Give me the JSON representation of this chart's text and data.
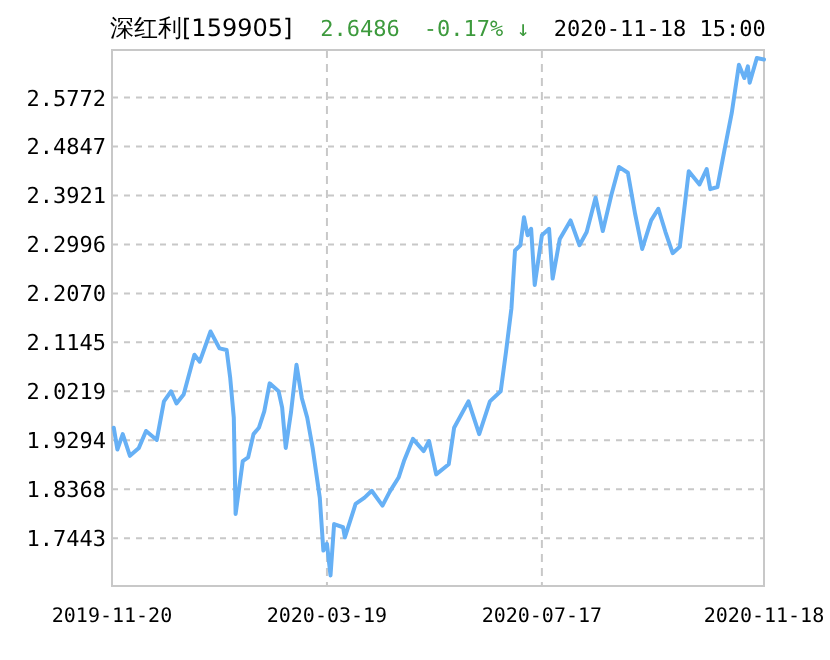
{
  "chart_data": {
    "type": "line",
    "title": "深红利[159905]",
    "annotations": [
      "2.6486",
      "-0.17% ↓",
      "2020-11-18 15:00"
    ],
    "x": [
      "2019-11-21",
      "2019-11-23",
      "2019-11-26",
      "2019-11-30",
      "2019-12-05",
      "2019-12-09",
      "2019-12-15",
      "2019-12-19",
      "2019-12-23",
      "2019-12-26",
      "2019-12-30",
      "2020-01-05",
      "2020-01-08",
      "2020-01-14",
      "2020-01-19",
      "2020-01-23",
      "2020-01-25",
      "2020-01-27",
      "2020-01-28",
      "2020-02-01",
      "2020-02-04",
      "2020-02-07",
      "2020-02-10",
      "2020-02-13",
      "2020-02-16",
      "2020-02-21",
      "2020-02-23",
      "2020-02-25",
      "2020-02-28",
      "2020-03-02",
      "2020-03-05",
      "2020-03-08",
      "2020-03-11",
      "2020-03-15",
      "2020-03-17",
      "2020-03-19",
      "2020-03-21",
      "2020-03-23",
      "2020-03-28",
      "2020-03-29",
      "2020-04-04",
      "2020-04-09",
      "2020-04-13",
      "2020-04-19",
      "2020-04-23",
      "2020-04-28",
      "2020-05-01",
      "2020-05-06",
      "2020-05-12",
      "2020-05-15",
      "2020-05-19",
      "2020-05-26",
      "2020-05-29",
      "2020-06-06",
      "2020-06-12",
      "2020-06-18",
      "2020-06-24",
      "2020-06-27",
      "2020-06-30",
      "2020-07-02",
      "2020-07-05",
      "2020-07-07",
      "2020-07-09",
      "2020-07-11",
      "2020-07-13",
      "2020-07-17",
      "2020-07-21",
      "2020-07-23",
      "2020-07-27",
      "2020-08-02",
      "2020-08-07",
      "2020-08-11",
      "2020-08-16",
      "2020-08-20",
      "2020-08-25",
      "2020-08-29",
      "2020-09-03",
      "2020-09-07",
      "2020-09-11",
      "2020-09-16",
      "2020-09-20",
      "2020-09-24",
      "2020-09-28",
      "2020-10-02",
      "2020-10-07",
      "2020-10-13",
      "2020-10-17",
      "2020-10-19",
      "2020-10-23",
      "2020-10-27",
      "2020-10-31",
      "2020-11-04",
      "2020-11-07",
      "2020-11-09",
      "2020-11-10",
      "2020-11-14",
      "2020-11-18"
    ],
    "series": [
      {
        "color": "#66b0f5",
        "values": [
          1.953,
          1.912,
          1.941,
          1.9,
          1.915,
          1.947,
          1.93,
          2.003,
          2.022,
          1.999,
          2.016,
          2.091,
          2.078,
          2.135,
          2.103,
          2.1,
          2.047,
          1.972,
          1.79,
          1.89,
          1.897,
          1.941,
          1.953,
          1.984,
          2.037,
          2.022,
          1.991,
          1.915,
          1.984,
          2.072,
          2.009,
          1.972,
          1.915,
          1.821,
          1.721,
          1.734,
          1.674,
          1.771,
          1.765,
          1.746,
          1.809,
          1.821,
          1.834,
          1.806,
          1.832,
          1.859,
          1.89,
          1.932,
          1.909,
          1.928,
          1.865,
          1.884,
          1.953,
          2.003,
          1.941,
          2.003,
          2.022,
          2.097,
          2.179,
          2.288,
          2.298,
          2.351,
          2.317,
          2.329,
          2.223,
          2.317,
          2.329,
          2.235,
          2.31,
          2.345,
          2.298,
          2.323,
          2.388,
          2.325,
          2.396,
          2.446,
          2.435,
          2.358,
          2.291,
          2.345,
          2.367,
          2.323,
          2.283,
          2.295,
          2.438,
          2.413,
          2.442,
          2.404,
          2.408,
          2.479,
          2.548,
          2.639,
          2.614,
          2.636,
          2.605,
          2.652,
          2.649
        ]
      }
    ],
    "xlim": [
      "2019-11-20",
      "2020-11-18"
    ],
    "xticks": [
      {
        "value": "2019-11-20",
        "label": "2019-11-20"
      },
      {
        "value": "2020-03-19",
        "label": "2020-03-19"
      },
      {
        "value": "2020-07-17",
        "label": "2020-07-17"
      },
      {
        "value": "2020-11-18",
        "label": "2020-11-18"
      }
    ],
    "ylim": [
      1.654,
      2.667
    ],
    "yticks": [
      1.7443,
      1.8368,
      1.9294,
      2.0219,
      2.1145,
      {
        "value": 2.207,
        "label": "2.2070"
      },
      2.2996,
      2.3921,
      2.4847,
      2.5772
    ],
    "grid": true,
    "marker": "none",
    "line_style": "solid"
  }
}
